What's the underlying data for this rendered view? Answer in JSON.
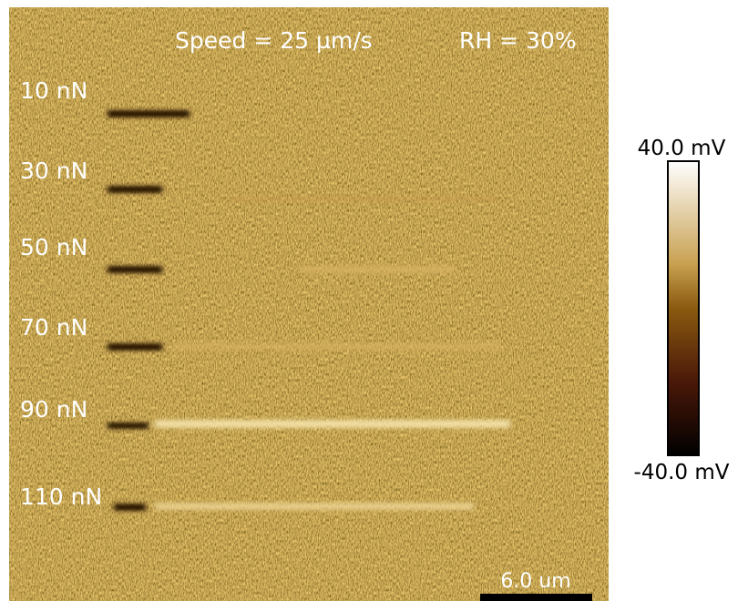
{
  "image": {
    "speed_label": "Speed = 25 µm/s",
    "rh_label": "RH = 30%",
    "load_labels": [
      "10 nN",
      "30 nN",
      "50 nN",
      "70 nN",
      "90 nN",
      "110 nN"
    ],
    "scale_bar": "6.0 um"
  },
  "colorbar": {
    "max_label": "40.0 mV",
    "min_label": "-40.0 mV"
  }
}
